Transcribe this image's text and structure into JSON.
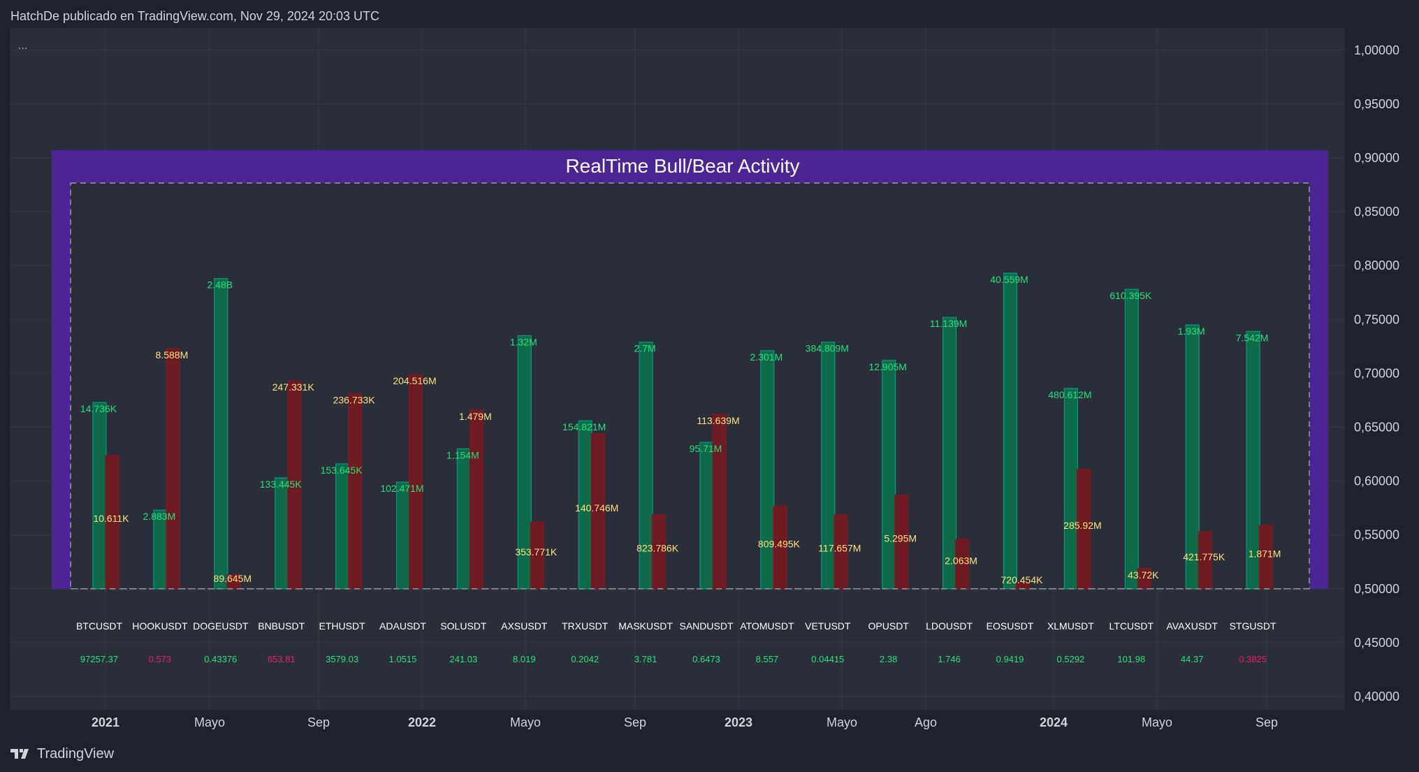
{
  "header": {
    "text": "HatchDe publicado en TradingView.com, Nov 29, 2024 20:03 UTC"
  },
  "footer": {
    "logo_text": "TradingView",
    "logo_icon": "tradingview-logo-icon"
  },
  "legend": {
    "menu": "..."
  },
  "colors": {
    "bg": "#1e222d",
    "pane": "#2a2e39",
    "grid": "#363a45",
    "panel": "#4a2593",
    "bull": "#089981",
    "bull_fill": "#0d6b4a",
    "bull_text": "#26e07a",
    "bear": "#801922",
    "bear_fill": "#6e1a22",
    "bear_text": "#ffe082",
    "tick_text": "#d1d4dc",
    "price_up": "#26e07a",
    "price_down": "#e91e63"
  },
  "chart_data": {
    "type": "bar",
    "title": "RealTime Bull/Bear Activity",
    "ylim": [
      0.4,
      1.0
    ],
    "y_ticks": [
      "1,00000",
      "0,95000",
      "0,90000",
      "0,85000",
      "0,80000",
      "0,75000",
      "0,70000",
      "0,65000",
      "0,60000",
      "0,55000",
      "0,50000",
      "0,45000",
      "0,40000"
    ],
    "y_tick_values": [
      1.0,
      0.95,
      0.9,
      0.85,
      0.8,
      0.75,
      0.7,
      0.65,
      0.6,
      0.55,
      0.5,
      0.45,
      0.4
    ],
    "x_ticks": [
      {
        "label": "2021",
        "bold": true
      },
      {
        "label": "Mayo",
        "bold": false
      },
      {
        "label": "Sep",
        "bold": false
      },
      {
        "label": "2022",
        "bold": true
      },
      {
        "label": "Mayo",
        "bold": false
      },
      {
        "label": "Sep",
        "bold": false
      },
      {
        "label": "2023",
        "bold": true
      },
      {
        "label": "Mayo",
        "bold": false
      },
      {
        "label": "Ago",
        "bold": false
      },
      {
        "label": "2024",
        "bold": true
      },
      {
        "label": "Mayo",
        "bold": false
      },
      {
        "label": "Sep",
        "bold": false
      }
    ],
    "baseline": 0.5,
    "series": [
      {
        "name": "Bull",
        "values": [
          0.673,
          0.573,
          0.788,
          0.603,
          0.616,
          0.599,
          0.63,
          0.735,
          0.656,
          0.729,
          0.636,
          0.721,
          0.729,
          0.712,
          0.752,
          0.793,
          0.686,
          0.778,
          0.745,
          0.739
        ]
      },
      {
        "name": "Bear",
        "values": [
          0.624,
          0.723,
          0.513,
          0.693,
          0.681,
          0.699,
          0.666,
          0.562,
          0.644,
          0.569,
          0.662,
          0.577,
          0.569,
          0.587,
          0.546,
          0.506,
          0.611,
          0.519,
          0.553,
          0.559
        ]
      }
    ],
    "symbols": [
      {
        "name": "BTCUSDT",
        "price": "97257.37",
        "price_dir": "up",
        "bull_label": "14.736K",
        "bear_label": "10.611K"
      },
      {
        "name": "HOOKUSDT",
        "price": "0.573",
        "price_dir": "down",
        "bull_label": "2.883M",
        "bear_label": "8.588M"
      },
      {
        "name": "DOGEUSDT",
        "price": "0.43376",
        "price_dir": "up",
        "bull_label": "2.48B",
        "bear_label": "89.645M"
      },
      {
        "name": "BNBUSDT",
        "price": "653.81",
        "price_dir": "down",
        "bull_label": "133.445K",
        "bear_label": "247.331K"
      },
      {
        "name": "ETHUSDT",
        "price": "3579.03",
        "price_dir": "up",
        "bull_label": "153.645K",
        "bear_label": "236.733K"
      },
      {
        "name": "ADAUSDT",
        "price": "1.0515",
        "price_dir": "up",
        "bull_label": "102.471M",
        "bear_label": "204.516M"
      },
      {
        "name": "SOLUSDT",
        "price": "241.03",
        "price_dir": "up",
        "bull_label": "1.154M",
        "bear_label": "1.479M"
      },
      {
        "name": "AXSUSDT",
        "price": "8.019",
        "price_dir": "up",
        "bull_label": "1.32M",
        "bear_label": "353.771K"
      },
      {
        "name": "TRXUSDT",
        "price": "0.2042",
        "price_dir": "up",
        "bull_label": "154.821M",
        "bear_label": "140.746M"
      },
      {
        "name": "MASKUSDT",
        "price": "3.781",
        "price_dir": "up",
        "bull_label": "2.7M",
        "bear_label": "823.786K"
      },
      {
        "name": "SANDUSDT",
        "price": "0.6473",
        "price_dir": "up",
        "bull_label": "95.71M",
        "bear_label": "113.639M"
      },
      {
        "name": "ATOMUSDT",
        "price": "8.557",
        "price_dir": "up",
        "bull_label": "2.301M",
        "bear_label": "809.495K"
      },
      {
        "name": "VETUSDT",
        "price": "0.04415",
        "price_dir": "up",
        "bull_label": "384.809M",
        "bear_label": "117.657M"
      },
      {
        "name": "OPUSDT",
        "price": "2.38",
        "price_dir": "up",
        "bull_label": "12.905M",
        "bear_label": "5.295M"
      },
      {
        "name": "LDOUSDT",
        "price": "1.746",
        "price_dir": "up",
        "bull_label": "11.139M",
        "bear_label": "2.063M"
      },
      {
        "name": "EOSUSDT",
        "price": "0.9419",
        "price_dir": "up",
        "bull_label": "40.559M",
        "bear_label": "720.454K"
      },
      {
        "name": "XLMUSDT",
        "price": "0.5292",
        "price_dir": "up",
        "bull_label": "480.612M",
        "bear_label": "285.92M"
      },
      {
        "name": "LTCUSDT",
        "price": "101.98",
        "price_dir": "up",
        "bull_label": "610.395K",
        "bear_label": "43.72K"
      },
      {
        "name": "AVAXUSDT",
        "price": "44.37",
        "price_dir": "up",
        "bull_label": "1.93M",
        "bear_label": "421.775K"
      },
      {
        "name": "STGUSDT",
        "price": "0.3825",
        "price_dir": "down",
        "bull_label": "7.542M",
        "bear_label": "1.871M"
      }
    ]
  }
}
